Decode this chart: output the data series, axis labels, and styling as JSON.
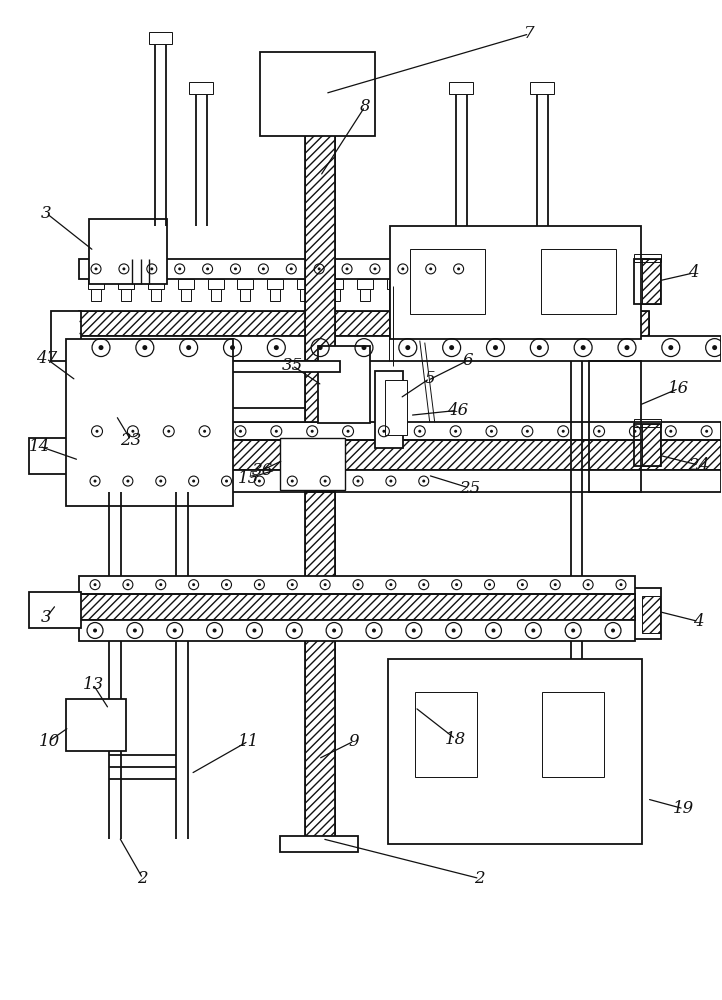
{
  "bg_color": "#ffffff",
  "line_color": "#111111",
  "lw": 1.3,
  "lw_thin": 0.7,
  "lw_med": 1.0,
  "fig_width": 7.22,
  "fig_height": 10.0,
  "dpi": 100
}
